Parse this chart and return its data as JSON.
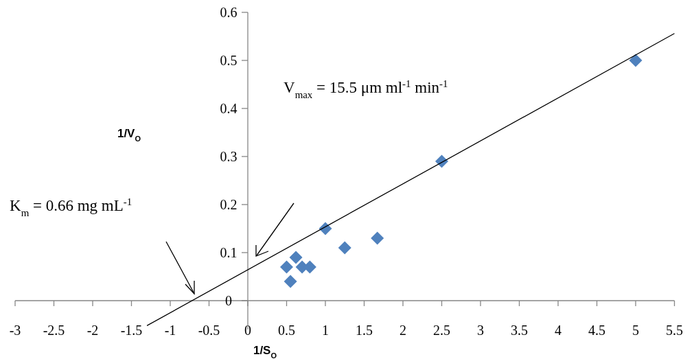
{
  "chart_data": {
    "type": "scatter",
    "xlabel": "1/S$_{O}$",
    "ylabel": "1/V$_{O}$",
    "annotations": [
      "K$_{m}$ = 0.66 mg mL$^{-1}$",
      "V$_{max}$ = 15.5 μm ml$^{-1}$ min$^{-1}$"
    ],
    "x": [
      0.5,
      0.55,
      0.62,
      0.7,
      0.8,
      1,
      1.25,
      1.67,
      2.5,
      5
    ],
    "series": [
      {
        "color": "#4f81bd",
        "marker": "diamond",
        "values": [
          0.07,
          0.04,
          0.09,
          0.07,
          0.07,
          0.15,
          0.11,
          0.13,
          0.29,
          0.5
        ]
      },
      {
        "type": "line",
        "color": "#000000",
        "marker": "none",
        "x": [
          -1.3,
          5.5
        ],
        "values": [
          -0.052,
          0.556
        ]
      }
    ],
    "xlim": [
      -3,
      5.5
    ],
    "ylim": [
      -0.06,
      0.6
    ],
    "xticks": [
      -3,
      -2.5,
      -2,
      -1.5,
      -1,
      -0.5,
      0,
      0.5,
      1,
      1.5,
      2,
      2.5,
      3,
      3.5,
      4,
      4.5,
      5,
      5.5
    ],
    "yticks": [
      0,
      0.1,
      0.2,
      0.3,
      0.4,
      0.5,
      0.6
    ],
    "grid": false
  }
}
